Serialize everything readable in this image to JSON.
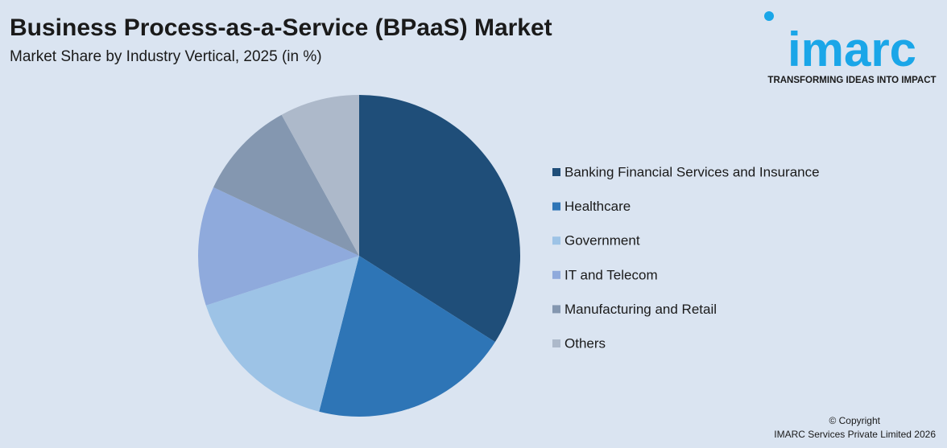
{
  "chart_data": {
    "type": "pie",
    "title": "Business Process-as-a-Service (BPaaS) Market",
    "subtitle": "Market Share by Industry Vertical, 2025 (in %)",
    "categories": [
      "Banking Financial Services and Insurance",
      "Healthcare",
      "Government",
      "IT and Telecom",
      "Manufacturing and Retail",
      "Others"
    ],
    "values": [
      34,
      20,
      16,
      12,
      10,
      8
    ],
    "colors": [
      "#1f4e79",
      "#2e75b6",
      "#9dc3e6",
      "#8faadc",
      "#8497b0",
      "#adb9ca"
    ],
    "legend": "right"
  },
  "logo": {
    "name": "imarc",
    "tagline": "TRANSFORMING IDEAS INTO IMPACT"
  },
  "footer": {
    "copyright": "© Copyright",
    "owner": "IMARC Services Private Limited 2026"
  }
}
